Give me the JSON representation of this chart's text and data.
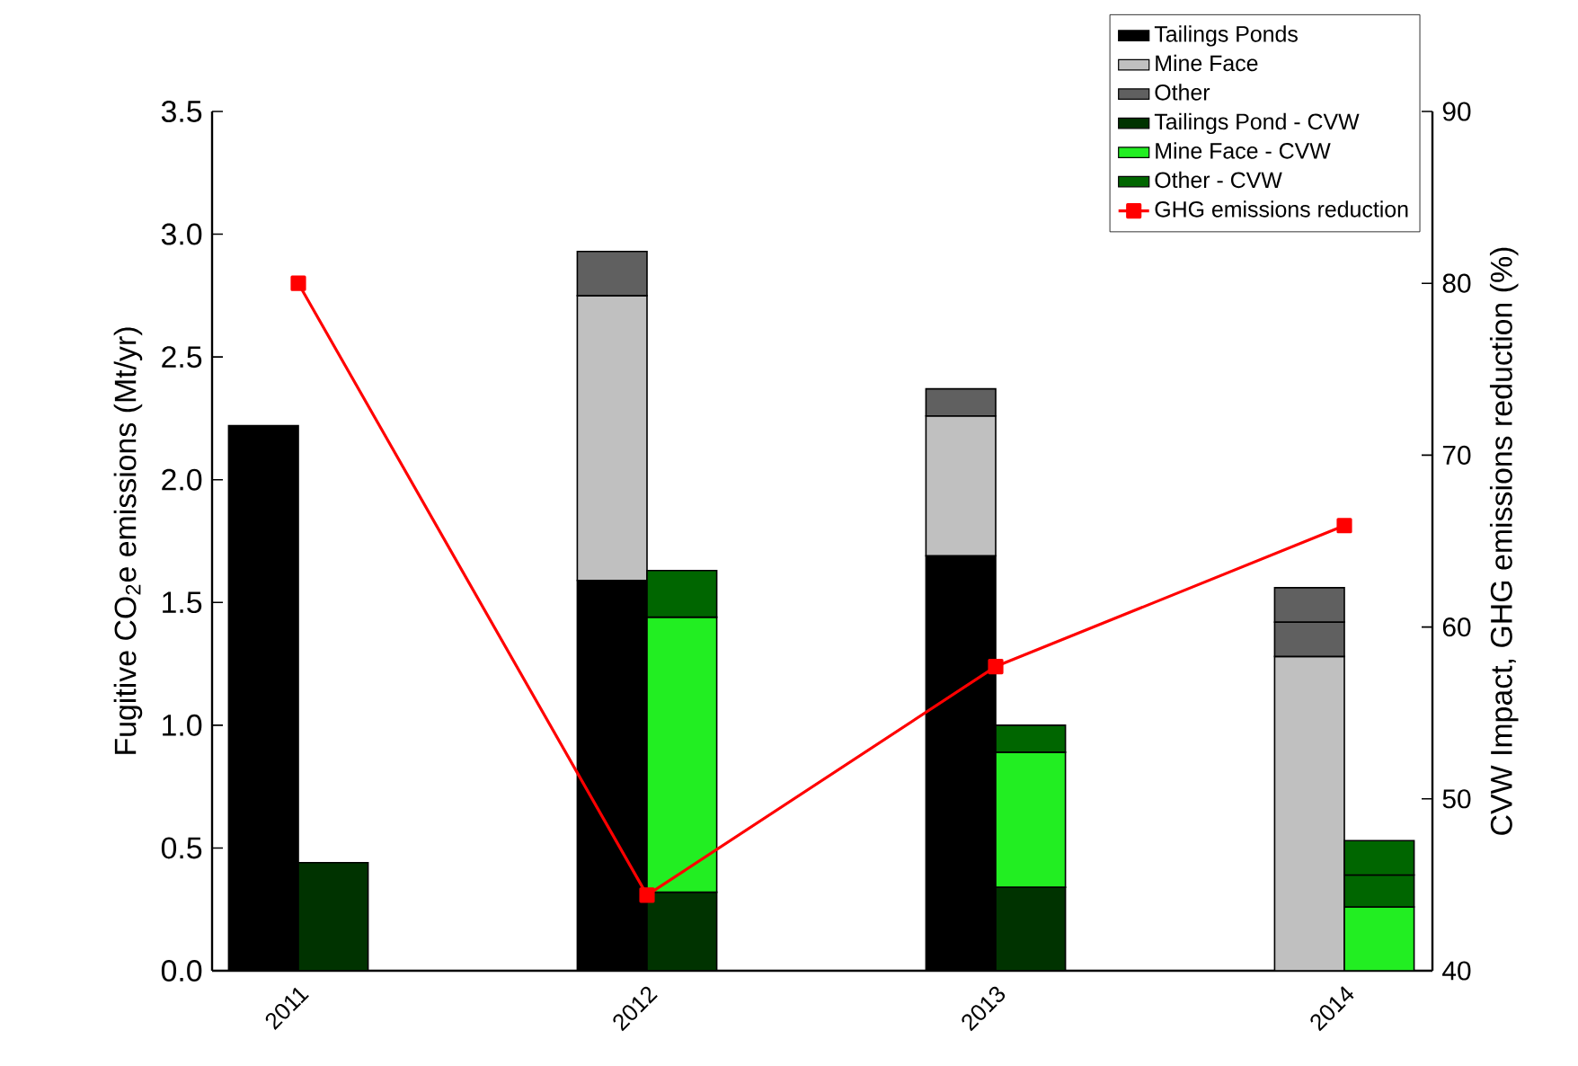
{
  "chart_data": {
    "type": "bar",
    "ylabel": "Fugitive CO$_{2}$e emissions (Mt/yr)",
    "y2label": "CVW Impact, GHG emissions reduction (%)",
    "categories": [
      "2011",
      "2012",
      "2013",
      "2014"
    ],
    "series": [
      {
        "name": "Tailings Ponds",
        "color": "#000000",
        "values": [
          2.22,
          1.59,
          1.69,
          null
        ],
        "base": [
          0,
          0,
          0,
          null
        ]
      },
      {
        "name": "Mine Face",
        "color": "#c0c0c0",
        "values": [
          null,
          1.16,
          0.57,
          1.28
        ],
        "base": [
          null,
          1.59,
          1.69,
          0
        ]
      },
      {
        "name": "Other",
        "color": "#606060",
        "values": [
          null,
          0.18,
          0.11,
          0.14
        ],
        "base": [
          null,
          2.75,
          2.26,
          1.28
        ]
      },
      {
        "color": "#606060",
        "values": [
          null,
          null,
          null,
          0.14
        ],
        "base": [
          null,
          null,
          null,
          1.42
        ]
      },
      {
        "name": "Tailings Pond - CVW",
        "color": "#003300",
        "values": [
          0.44,
          0.32,
          0.34,
          null
        ],
        "base": [
          0,
          0,
          0,
          null
        ]
      },
      {
        "name": "Mine Face - CVW",
        "color": "#22ee22",
        "values": [
          null,
          1.12,
          0.55,
          0.26
        ],
        "base": [
          null,
          0.32,
          0.34,
          0
        ]
      },
      {
        "name": "Other - CVW",
        "color": "#006600",
        "values": [
          null,
          0.19,
          0.11,
          0.13
        ],
        "base": [
          null,
          1.44,
          0.89,
          0.26
        ]
      },
      {
        "color": "#006600",
        "values": [
          null,
          null,
          null,
          0.14
        ],
        "base": [
          null,
          null,
          null,
          0.39
        ]
      },
      {
        "name": "GHG emissions reduction",
        "type": "line",
        "axis": "y2",
        "color": "#ff0000",
        "values": [
          80,
          44.4,
          57.7,
          65.9
        ]
      }
    ],
    "marker": "square",
    "line_style": "solid",
    "legend": "top right",
    "ylim": [
      0,
      3.5
    ],
    "yticks": [
      {
        "value": 0,
        "label": "0.0"
      },
      {
        "value": 0.5,
        "label": "0.5"
      },
      {
        "value": 1,
        "label": "1.0"
      },
      {
        "value": 1.5,
        "label": "1.5"
      },
      {
        "value": 2,
        "label": "2.0"
      },
      {
        "value": 2.5,
        "label": "2.5"
      },
      {
        "value": 3,
        "label": "3.0"
      },
      {
        "value": 3.5,
        "label": "3.5"
      }
    ],
    "y2lim": [
      40,
      90
    ],
    "y2ticks": [
      40,
      50,
      60,
      70,
      80,
      90
    ]
  }
}
